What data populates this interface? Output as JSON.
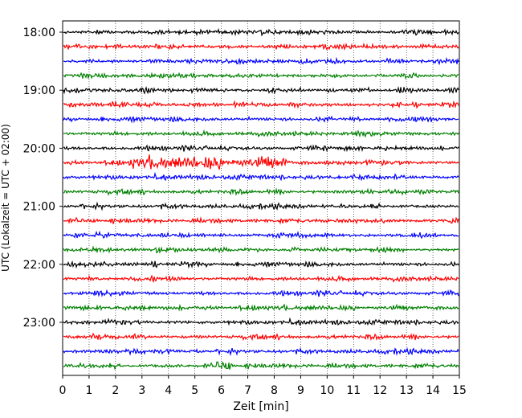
{
  "chart_data": {
    "type": "line",
    "title": "",
    "xlabel": "Zeit  [min]",
    "ylabel": "UTC (Lokalzeit = UTC + 02:00)",
    "xlim": [
      0,
      15
    ],
    "x_ticks": [
      0,
      1,
      2,
      3,
      4,
      5,
      6,
      7,
      8,
      9,
      10,
      11,
      12,
      13,
      14,
      15
    ],
    "y_ticks": [
      "18:00",
      "19:00",
      "20:00",
      "21:00",
      "22:00",
      "23:00"
    ],
    "grid": "vertical-dotted",
    "legend": "none",
    "trace_minutes": 15,
    "trace_start": "18:00",
    "trace_end": "23:45",
    "trace_colors": [
      "#000000",
      "#ff0000",
      "#0000ff",
      "#008000"
    ],
    "traces": [
      {
        "start": "18:00",
        "color": "#000000"
      },
      {
        "start": "18:15",
        "color": "#ff0000"
      },
      {
        "start": "18:30",
        "color": "#0000ff"
      },
      {
        "start": "18:45",
        "color": "#008000"
      },
      {
        "start": "19:00",
        "color": "#000000"
      },
      {
        "start": "19:15",
        "color": "#ff0000"
      },
      {
        "start": "19:30",
        "color": "#0000ff"
      },
      {
        "start": "19:45",
        "color": "#008000"
      },
      {
        "start": "20:00",
        "color": "#000000"
      },
      {
        "start": "20:15",
        "color": "#ff0000",
        "burst": [
          2.5,
          8.5
        ]
      },
      {
        "start": "20:30",
        "color": "#0000ff"
      },
      {
        "start": "20:45",
        "color": "#008000"
      },
      {
        "start": "21:00",
        "color": "#000000"
      },
      {
        "start": "21:15",
        "color": "#ff0000"
      },
      {
        "start": "21:30",
        "color": "#0000ff"
      },
      {
        "start": "21:45",
        "color": "#008000"
      },
      {
        "start": "22:00",
        "color": "#000000"
      },
      {
        "start": "22:15",
        "color": "#ff0000"
      },
      {
        "start": "22:30",
        "color": "#0000ff"
      },
      {
        "start": "22:45",
        "color": "#008000"
      },
      {
        "start": "23:00",
        "color": "#000000"
      },
      {
        "start": "23:15",
        "color": "#ff0000"
      },
      {
        "start": "23:30",
        "color": "#0000ff"
      },
      {
        "start": "23:45",
        "color": "#008000",
        "burst": [
          5.8,
          6.4
        ]
      }
    ]
  }
}
